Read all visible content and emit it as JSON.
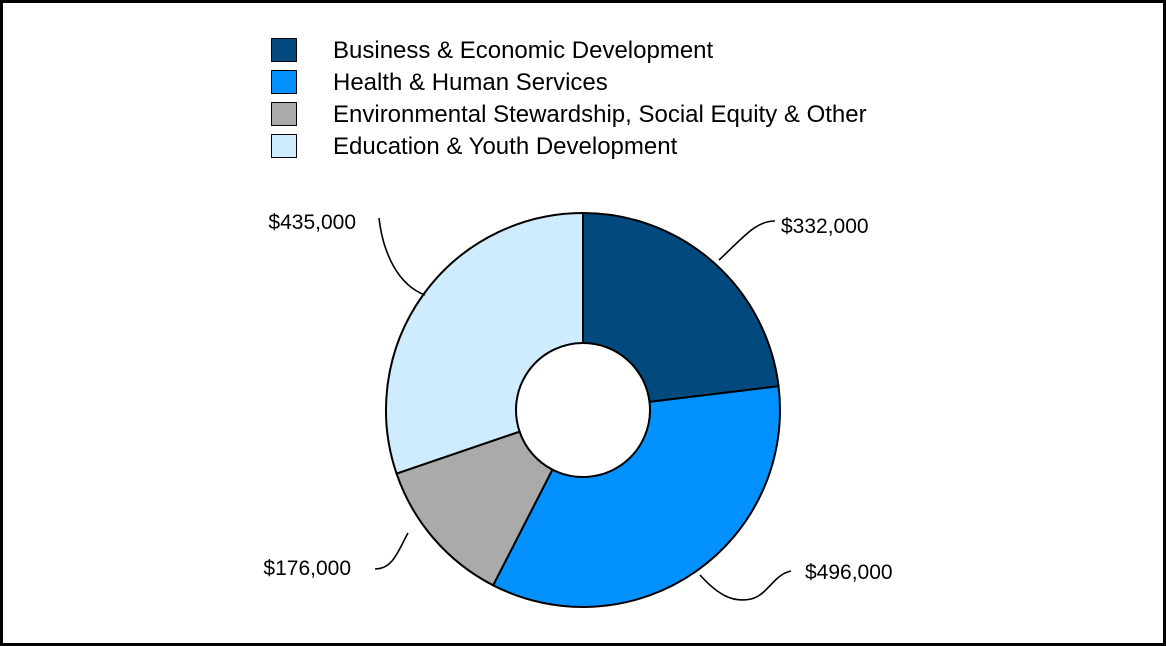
{
  "chart_data": {
    "type": "pie",
    "donut": true,
    "categories": [
      "Business & Economic Development",
      "Health & Human Services",
      "Environmental Stewardship, Social Equity & Other",
      "Education & Youth Development"
    ],
    "values": [
      332000,
      496000,
      176000,
      435000
    ],
    "data_labels": [
      "$332,000",
      "$496,000",
      "$176,000",
      "$435,000"
    ],
    "colors": [
      "#02497d",
      "#0291fe",
      "#aaaaaa",
      "#cfecfe"
    ],
    "title": "",
    "legend_position": "top"
  }
}
